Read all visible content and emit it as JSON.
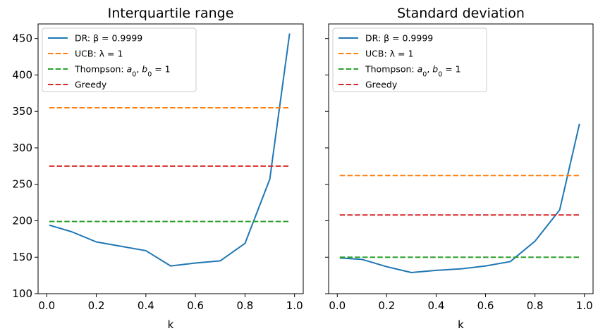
{
  "chart_data": [
    {
      "type": "line",
      "title": "Interquartile range",
      "xlabel": "k",
      "ylabel": "",
      "xlim": [
        -0.035,
        1.035
      ],
      "ylim": [
        100,
        470
      ],
      "xticks": [
        0.0,
        0.2,
        0.4,
        0.6,
        0.8,
        1.0
      ],
      "xtick_labels": [
        "0.0",
        "0.2",
        "0.4",
        "0.6",
        "0.8",
        "1.0"
      ],
      "yticks": [
        100,
        150,
        200,
        250,
        300,
        350,
        400,
        450
      ],
      "ytick_labels": [
        "100",
        "150",
        "200",
        "250",
        "300",
        "350",
        "400",
        "450"
      ],
      "legend_position": "upper-left",
      "series": [
        {
          "name": "DR: β = 0.9999",
          "style": "solid",
          "color": "#1f77b4",
          "x": [
            0.01,
            0.1,
            0.2,
            0.3,
            0.4,
            0.5,
            0.6,
            0.7,
            0.8,
            0.9,
            0.98
          ],
          "y": [
            194,
            185,
            171,
            165,
            159,
            138,
            142,
            145,
            169,
            257,
            457
          ]
        },
        {
          "name": "UCB: λ = 1",
          "style": "dashed",
          "color": "#ff7f0e",
          "x": [
            0.01,
            0.98
          ],
          "y": [
            355,
            355
          ]
        },
        {
          "name": "Thompson: a0, b0 = 1",
          "style": "dashed",
          "color": "#2ca02c",
          "x": [
            0.01,
            0.98
          ],
          "y": [
            199,
            199
          ]
        },
        {
          "name": "Greedy",
          "style": "dashed",
          "color": "#d62728",
          "x": [
            0.01,
            0.98
          ],
          "y": [
            275,
            275
          ]
        }
      ]
    },
    {
      "type": "line",
      "title": "Standard deviation",
      "xlabel": "k",
      "ylabel": "",
      "xlim": [
        -0.035,
        1.035
      ],
      "ylim": [
        100,
        470
      ],
      "xticks": [
        0.0,
        0.2,
        0.4,
        0.6,
        0.8,
        1.0
      ],
      "xtick_labels": [
        "0.0",
        "0.2",
        "0.4",
        "0.6",
        "0.8",
        "1.0"
      ],
      "yticks": [
        100,
        150,
        200,
        250,
        300,
        350,
        400,
        450
      ],
      "ytick_labels": [],
      "legend_position": "upper-left",
      "series": [
        {
          "name": "DR: β = 0.9999",
          "style": "solid",
          "color": "#1f77b4",
          "x": [
            0.01,
            0.1,
            0.2,
            0.3,
            0.4,
            0.5,
            0.6,
            0.7,
            0.8,
            0.9,
            0.98
          ],
          "y": [
            149,
            147,
            137,
            129,
            132,
            134,
            138,
            144,
            172,
            215,
            333
          ]
        },
        {
          "name": "UCB: λ = 1",
          "style": "dashed",
          "color": "#ff7f0e",
          "x": [
            0.01,
            0.98
          ],
          "y": [
            262,
            262
          ]
        },
        {
          "name": "Thompson: a0, b0 = 1",
          "style": "dashed",
          "color": "#2ca02c",
          "x": [
            0.01,
            0.98
          ],
          "y": [
            150,
            150
          ]
        },
        {
          "name": "Greedy",
          "style": "dashed",
          "color": "#d62728",
          "x": [
            0.01,
            0.98
          ],
          "y": [
            208,
            208
          ]
        }
      ]
    }
  ]
}
